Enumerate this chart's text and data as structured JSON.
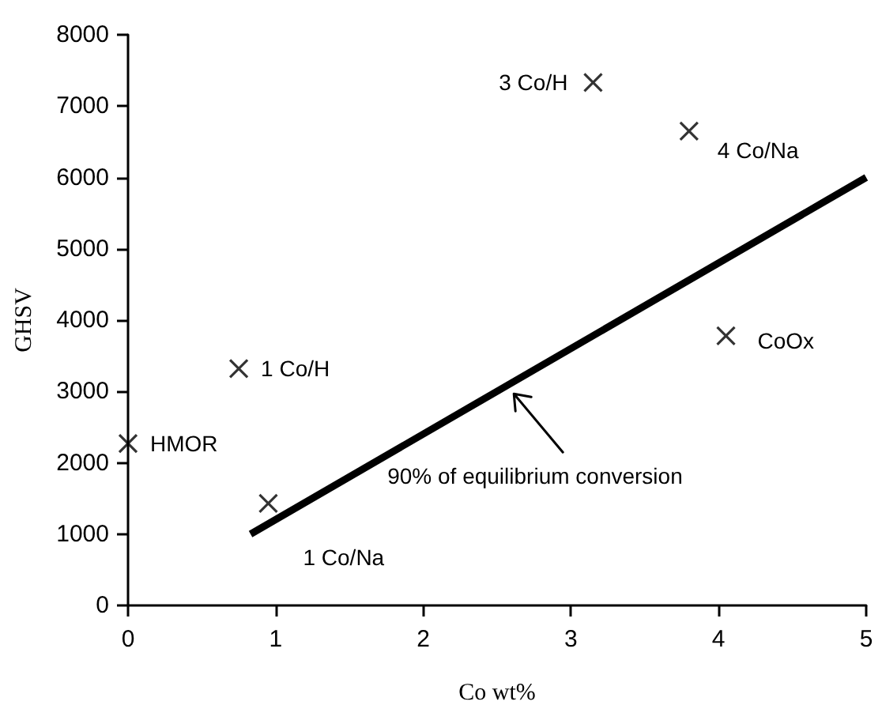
{
  "chart_data": {
    "type": "scatter",
    "xlabel": "Co wt%",
    "ylabel": "GHSV",
    "xlim": [
      0,
      5
    ],
    "xticks": [
      0,
      1,
      2,
      3,
      4,
      5
    ],
    "ylim": [
      0,
      8000
    ],
    "yticks": [
      0,
      1000,
      2000,
      3000,
      4000,
      5000,
      6000,
      7000,
      8000
    ],
    "grid": false,
    "marker": "cross",
    "series": [
      {
        "color": "#000000",
        "x": [
          0,
          0.75,
          0.95,
          3.15,
          3.8,
          4.05
        ],
        "values": [
          2270,
          3320,
          1430,
          7330,
          6650,
          3780
        ]
      },
      {
        "type": "line",
        "color": "#000000",
        "marker": "none",
        "line_style": "solid",
        "x": [
          0.83,
          5
        ],
        "values": [
          1000,
          6000
        ]
      }
    ],
    "annotations": [
      {
        "text": "HMOR",
        "x": 0,
        "y": 2270
      },
      {
        "text": "1 Co/H",
        "x": 0.75,
        "y": 3320
      },
      {
        "text": "1 Co/Na",
        "x": 0.95,
        "y": 1430
      },
      {
        "text": "3 Co/H",
        "x": 3.15,
        "y": 7330
      },
      {
        "text": "4 Co/Na",
        "x": 3.8,
        "y": 6650
      },
      {
        "text": "CoOx",
        "x": 4.05,
        "y": 3780
      },
      "90% of equilibrium conversion"
    ]
  }
}
